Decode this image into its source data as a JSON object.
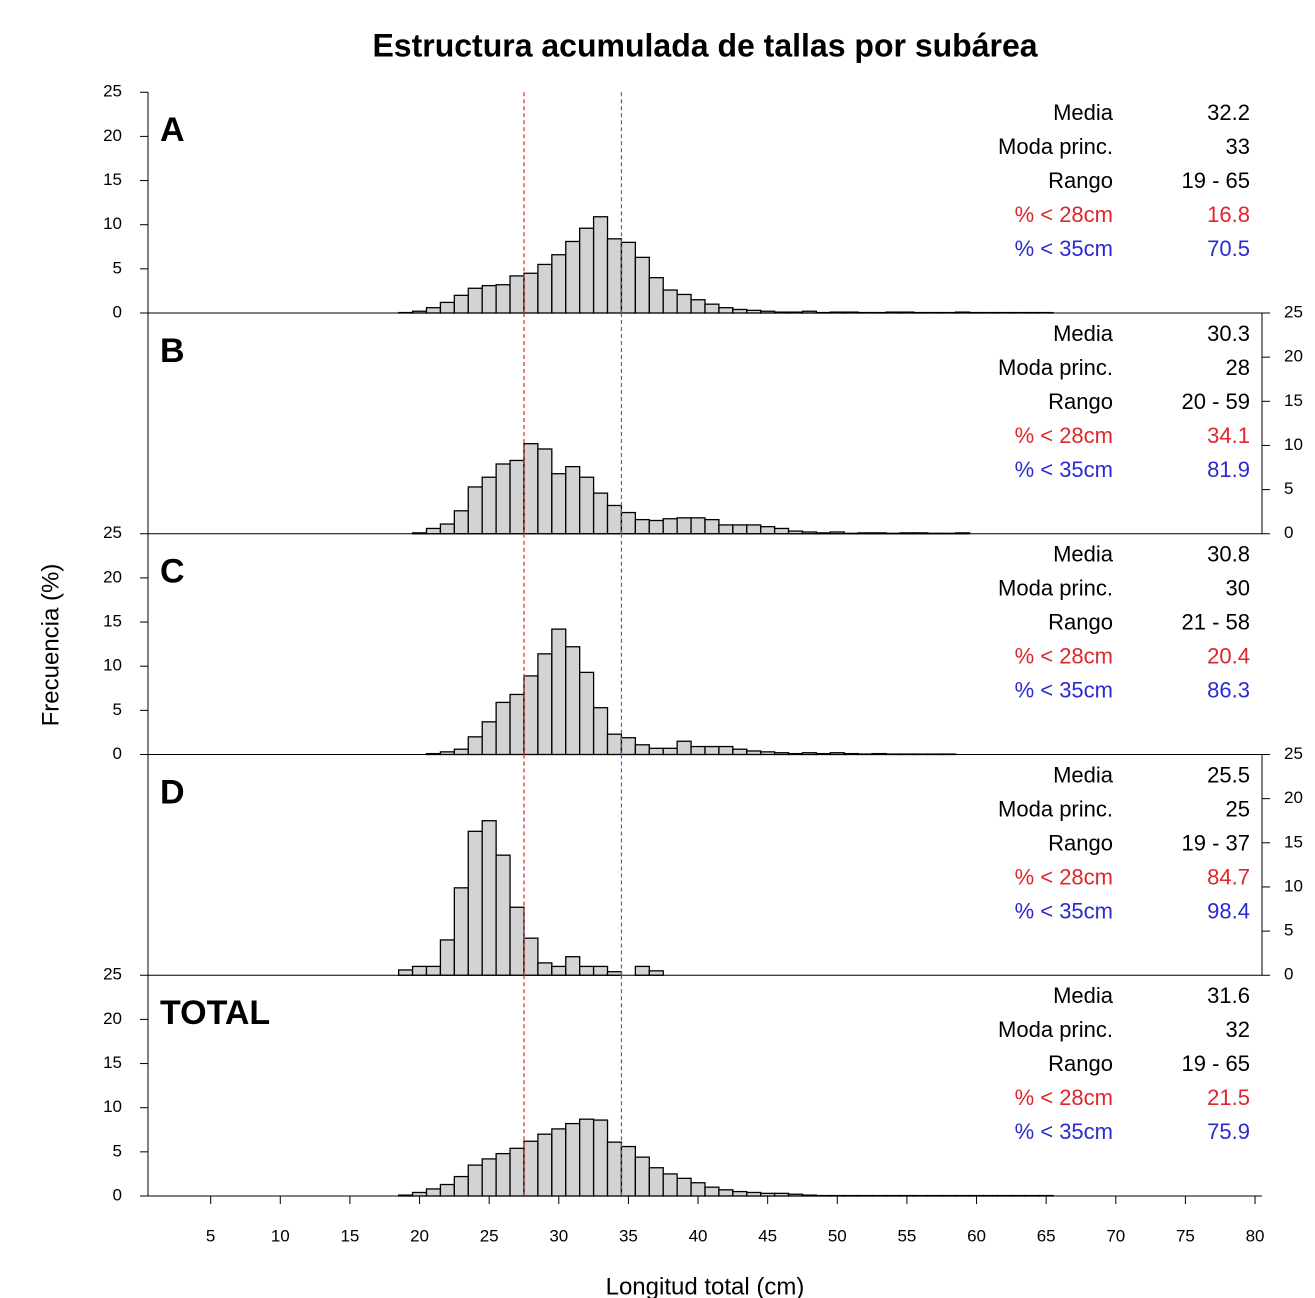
{
  "title": "Estructura acumulada de tallas por subárea",
  "ylabel": "Frecuencia (%)",
  "xlabel": "Longitud total (cm)",
  "chart_data": [
    {
      "type": "histogram",
      "label": "A",
      "color": "#d3d3d3",
      "yaxis": "left",
      "xlim": [
        0.5,
        80.5
      ],
      "ylim": [
        0,
        25
      ],
      "yticks": [
        0,
        5,
        10,
        15,
        20,
        25
      ],
      "bins": [
        18.5,
        19.5,
        20.5,
        21.5,
        22.5,
        23.5,
        24.5,
        25.5,
        26.5,
        27.5,
        28.5,
        29.5,
        30.5,
        31.5,
        32.5,
        33.5,
        34.5,
        35.5,
        36.5,
        37.5,
        38.5,
        39.5,
        40.5,
        41.5,
        42.5,
        43.5,
        44.5,
        45.5,
        46.5,
        47.5,
        48.5,
        49.5,
        50.5,
        51.5,
        52.5,
        53.5,
        54.5,
        55.5,
        56.5,
        57.5,
        58.5,
        59.5,
        60.5,
        61.5,
        62.5,
        63.5,
        64.5,
        65.5
      ],
      "values": [
        0.05,
        0.2,
        0.6,
        1.2,
        2.0,
        2.8,
        3.1,
        3.2,
        4.2,
        4.5,
        5.5,
        6.6,
        8.1,
        9.6,
        10.9,
        8.4,
        8.0,
        6.3,
        4.0,
        2.6,
        2.1,
        1.5,
        1.0,
        0.6,
        0.4,
        0.3,
        0.2,
        0.1,
        0.1,
        0.2,
        0.05,
        0.1,
        0.1,
        0.05,
        0.05,
        0.1,
        0.1,
        0.05,
        0.05,
        0.05,
        0.1,
        0.05,
        0.05,
        0.05,
        0.05,
        0.05,
        0.05
      ],
      "vlines": [
        {
          "x": 27.5,
          "color": "#e0262b"
        },
        {
          "x": 34.5,
          "color": "#5a5ad0"
        }
      ],
      "stats": [
        {
          "label": "Media",
          "value": 32.2
        },
        {
          "label": "Moda princ.",
          "value": 33
        },
        {
          "label": "Rango",
          "value": "19 - 65"
        },
        {
          "label": "% < 28cm",
          "value": 16.8,
          "color": "#e0262b"
        },
        {
          "label": "% < 35cm",
          "value": 70.5,
          "color": "#2a2ad0"
        }
      ]
    },
    {
      "type": "histogram",
      "label": "B",
      "color": "#d3d3d3",
      "yaxis": "right",
      "xlim": [
        0.5,
        80.5
      ],
      "ylim": [
        0,
        25
      ],
      "yticks": [
        0,
        5,
        10,
        15,
        20,
        25
      ],
      "bins": [
        19.5,
        20.5,
        21.5,
        22.5,
        23.5,
        24.5,
        25.5,
        26.5,
        27.5,
        28.5,
        29.5,
        30.5,
        31.5,
        32.5,
        33.5,
        34.5,
        35.5,
        36.5,
        37.5,
        38.5,
        39.5,
        40.5,
        41.5,
        42.5,
        43.5,
        44.5,
        45.5,
        46.5,
        47.5,
        48.5,
        49.5,
        50.5,
        51.5,
        52.5,
        53.5,
        54.5,
        55.5,
        56.5,
        57.5,
        58.5,
        59.5
      ],
      "values": [
        0.1,
        0.6,
        1.1,
        2.6,
        5.3,
        6.4,
        7.9,
        8.3,
        10.2,
        9.6,
        6.8,
        7.6,
        6.4,
        4.6,
        3.2,
        2.4,
        1.6,
        1.5,
        1.7,
        1.8,
        1.8,
        1.6,
        1.0,
        1.0,
        1.0,
        0.8,
        0.6,
        0.3,
        0.2,
        0.1,
        0.2,
        0.05,
        0.1,
        0.1,
        0.05,
        0.1,
        0.1,
        0.05,
        0.05,
        0.1
      ],
      "vlines": [
        {
          "x": 27.5,
          "color": "#e0262b"
        },
        {
          "x": 34.5,
          "color": "#5a5ad0"
        }
      ],
      "stats": [
        {
          "label": "Media",
          "value": 30.3
        },
        {
          "label": "Moda princ.",
          "value": 28
        },
        {
          "label": "Rango",
          "value": "20 - 59"
        },
        {
          "label": "% < 28cm",
          "value": 34.1,
          "color": "#e0262b"
        },
        {
          "label": "% < 35cm",
          "value": 81.9,
          "color": "#2a2ad0"
        }
      ]
    },
    {
      "type": "histogram",
      "label": "C",
      "color": "#d3d3d3",
      "yaxis": "left",
      "xlim": [
        0.5,
        80.5
      ],
      "ylim": [
        0,
        25
      ],
      "yticks": [
        0,
        5,
        10,
        15,
        20,
        25
      ],
      "bins": [
        20.5,
        21.5,
        22.5,
        23.5,
        24.5,
        25.5,
        26.5,
        27.5,
        28.5,
        29.5,
        30.5,
        31.5,
        32.5,
        33.5,
        34.5,
        35.5,
        36.5,
        37.5,
        38.5,
        39.5,
        40.5,
        41.5,
        42.5,
        43.5,
        44.5,
        45.5,
        46.5,
        47.5,
        48.5,
        49.5,
        50.5,
        51.5,
        52.5,
        53.5,
        54.5,
        55.5,
        56.5,
        57.5,
        58.5
      ],
      "values": [
        0.1,
        0.3,
        0.6,
        2.0,
        3.7,
        5.9,
        6.8,
        8.9,
        11.4,
        14.2,
        12.2,
        9.3,
        5.3,
        2.3,
        1.9,
        1.1,
        0.7,
        0.7,
        1.5,
        0.9,
        0.9,
        0.9,
        0.6,
        0.4,
        0.3,
        0.2,
        0.1,
        0.2,
        0.1,
        0.2,
        0.1,
        0.05,
        0.1,
        0.05,
        0.05,
        0.05,
        0.05,
        0.05
      ],
      "vlines": [
        {
          "x": 27.5,
          "color": "#e0262b"
        },
        {
          "x": 34.5,
          "color": "#5a5ad0"
        }
      ],
      "stats": [
        {
          "label": "Media",
          "value": 30.8
        },
        {
          "label": "Moda princ.",
          "value": 30
        },
        {
          "label": "Rango",
          "value": "21 - 58"
        },
        {
          "label": "% < 28cm",
          "value": 20.4,
          "color": "#e0262b"
        },
        {
          "label": "% < 35cm",
          "value": 86.3,
          "color": "#2a2ad0"
        }
      ]
    },
    {
      "type": "histogram",
      "label": "D",
      "color": "#d3d3d3",
      "yaxis": "right",
      "xlim": [
        0.5,
        80.5
      ],
      "ylim": [
        0,
        25
      ],
      "yticks": [
        0,
        5,
        10,
        15,
        20,
        25
      ],
      "bins": [
        18.5,
        19.5,
        20.5,
        21.5,
        22.5,
        23.5,
        24.5,
        25.5,
        26.5,
        27.5,
        28.5,
        29.5,
        30.5,
        31.5,
        32.5,
        33.5,
        34.5,
        35.5,
        36.5,
        37.5
      ],
      "values": [
        0.6,
        1.0,
        1.0,
        4.0,
        9.9,
        16.3,
        17.5,
        13.6,
        7.7,
        4.2,
        1.4,
        1.0,
        2.1,
        1.0,
        1.0,
        0.4,
        0,
        1.0,
        0.5
      ],
      "vlines": [
        {
          "x": 27.5,
          "color": "#e0262b"
        },
        {
          "x": 34.5,
          "color": "#5a5ad0"
        }
      ],
      "stats": [
        {
          "label": "Media",
          "value": 25.5
        },
        {
          "label": "Moda princ.",
          "value": 25
        },
        {
          "label": "Rango",
          "value": "19 - 37"
        },
        {
          "label": "% < 28cm",
          "value": 84.7,
          "color": "#e0262b"
        },
        {
          "label": "% < 35cm",
          "value": 98.4,
          "color": "#2a2ad0"
        }
      ]
    },
    {
      "type": "histogram",
      "label": "TOTAL",
      "color": "#d3d3d3",
      "yaxis": "left",
      "xlim": [
        0.5,
        80.5
      ],
      "ylim": [
        0,
        25
      ],
      "yticks": [
        0,
        5,
        10,
        15,
        20,
        25
      ],
      "xticks": [
        5,
        10,
        15,
        20,
        25,
        30,
        35,
        40,
        45,
        50,
        55,
        60,
        65,
        70,
        75,
        80
      ],
      "bins": [
        18.5,
        19.5,
        20.5,
        21.5,
        22.5,
        23.5,
        24.5,
        25.5,
        26.5,
        27.5,
        28.5,
        29.5,
        30.5,
        31.5,
        32.5,
        33.5,
        34.5,
        35.5,
        36.5,
        37.5,
        38.5,
        39.5,
        40.5,
        41.5,
        42.5,
        43.5,
        44.5,
        45.5,
        46.5,
        47.5,
        48.5,
        49.5,
        50.5,
        51.5,
        52.5,
        53.5,
        54.5,
        55.5,
        56.5,
        57.5,
        58.5,
        59.5,
        60.5,
        61.5,
        62.5,
        63.5,
        64.5,
        65.5
      ],
      "values": [
        0.1,
        0.4,
        0.8,
        1.3,
        2.2,
        3.5,
        4.2,
        4.8,
        5.4,
        6.2,
        7.0,
        7.6,
        8.2,
        8.7,
        8.6,
        6.1,
        5.6,
        4.4,
        3.2,
        2.5,
        2.0,
        1.5,
        1.0,
        0.7,
        0.5,
        0.4,
        0.3,
        0.3,
        0.2,
        0.1,
        0.05,
        0.05,
        0.05,
        0.05,
        0.05,
        0.05,
        0.05,
        0.05,
        0.05,
        0.05,
        0.05,
        0.05,
        0.05,
        0.05,
        0.05,
        0.05,
        0.05
      ],
      "vlines": [
        {
          "x": 27.5,
          "color": "#e0262b"
        },
        {
          "x": 34.5,
          "color": "#5a5ad0"
        }
      ],
      "stats": [
        {
          "label": "Media",
          "value": 31.6
        },
        {
          "label": "Moda princ.",
          "value": 32
        },
        {
          "label": "Rango",
          "value": "19 - 65"
        },
        {
          "label": "% < 28cm",
          "value": 21.5,
          "color": "#e0262b"
        },
        {
          "label": "% < 35cm",
          "value": 75.9,
          "color": "#2a2ad0"
        }
      ]
    }
  ]
}
